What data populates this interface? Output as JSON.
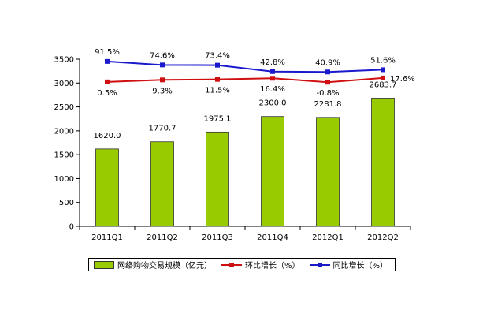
{
  "chart_data": {
    "type": "bar",
    "title": "",
    "categories": [
      "2011Q1",
      "2011Q2",
      "2011Q3",
      "2011Q4",
      "2012Q1",
      "2012Q2"
    ],
    "ylim": [
      0,
      3500
    ],
    "yticks": [
      0,
      500,
      1000,
      1500,
      2000,
      2500,
      3000,
      3500
    ],
    "grid": false,
    "legend_position": "bottom",
    "series": [
      {
        "name": "网络购物交易规模（亿元）",
        "type": "bar",
        "color": "#99cc00",
        "values": [
          1620.0,
          1770.7,
          1975.1,
          2300.0,
          2281.8,
          2683.7
        ],
        "labels": [
          "1620.0",
          "1770.7",
          "1975.1",
          "2300.0",
          "2281.8",
          "2683.7"
        ]
      },
      {
        "name": "环比增长（%）",
        "type": "line",
        "color": "#d01010",
        "values": [
          0.5,
          9.3,
          11.5,
          16.4,
          -0.8,
          17.6
        ],
        "labels": [
          "0.5%",
          "9.3%",
          "11.5%",
          "16.4%",
          "-0.8%",
          "17.6%"
        ]
      },
      {
        "name": "同比增长（%）",
        "type": "line",
        "color": "#1a1acc",
        "values": [
          91.5,
          74.6,
          73.4,
          42.8,
          40.9,
          51.6
        ],
        "labels": [
          "91.5%",
          "74.6%",
          "73.4%",
          "42.8%",
          "40.9%",
          "51.6%"
        ]
      }
    ]
  }
}
